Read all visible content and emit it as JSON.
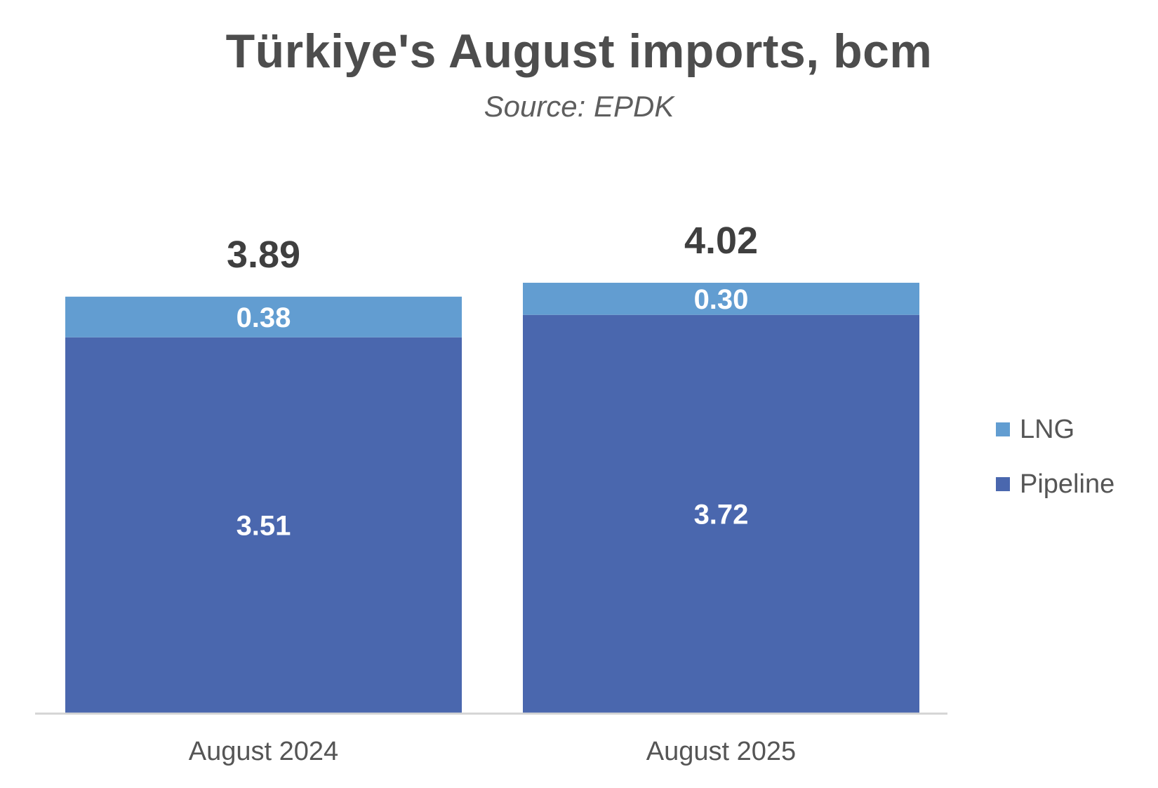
{
  "chart_data": {
    "type": "bar",
    "stacked": true,
    "title": "Türkiye's August imports, bcm",
    "subtitle": "Source: EPDK",
    "categories": [
      "August 2024",
      "August 2025"
    ],
    "series": [
      {
        "name": "Pipeline",
        "values": [
          3.51,
          3.72
        ],
        "color": "#4a67ae",
        "labels": [
          "3.51",
          "3.72"
        ]
      },
      {
        "name": "LNG",
        "values": [
          0.38,
          0.3
        ],
        "color": "#629dd1",
        "labels": [
          "0.38",
          "0.30"
        ]
      }
    ],
    "totals": [
      "3.89",
      "4.02"
    ],
    "legend": {
      "position": "right",
      "items": [
        "LNG",
        "Pipeline"
      ]
    },
    "grid": false
  }
}
